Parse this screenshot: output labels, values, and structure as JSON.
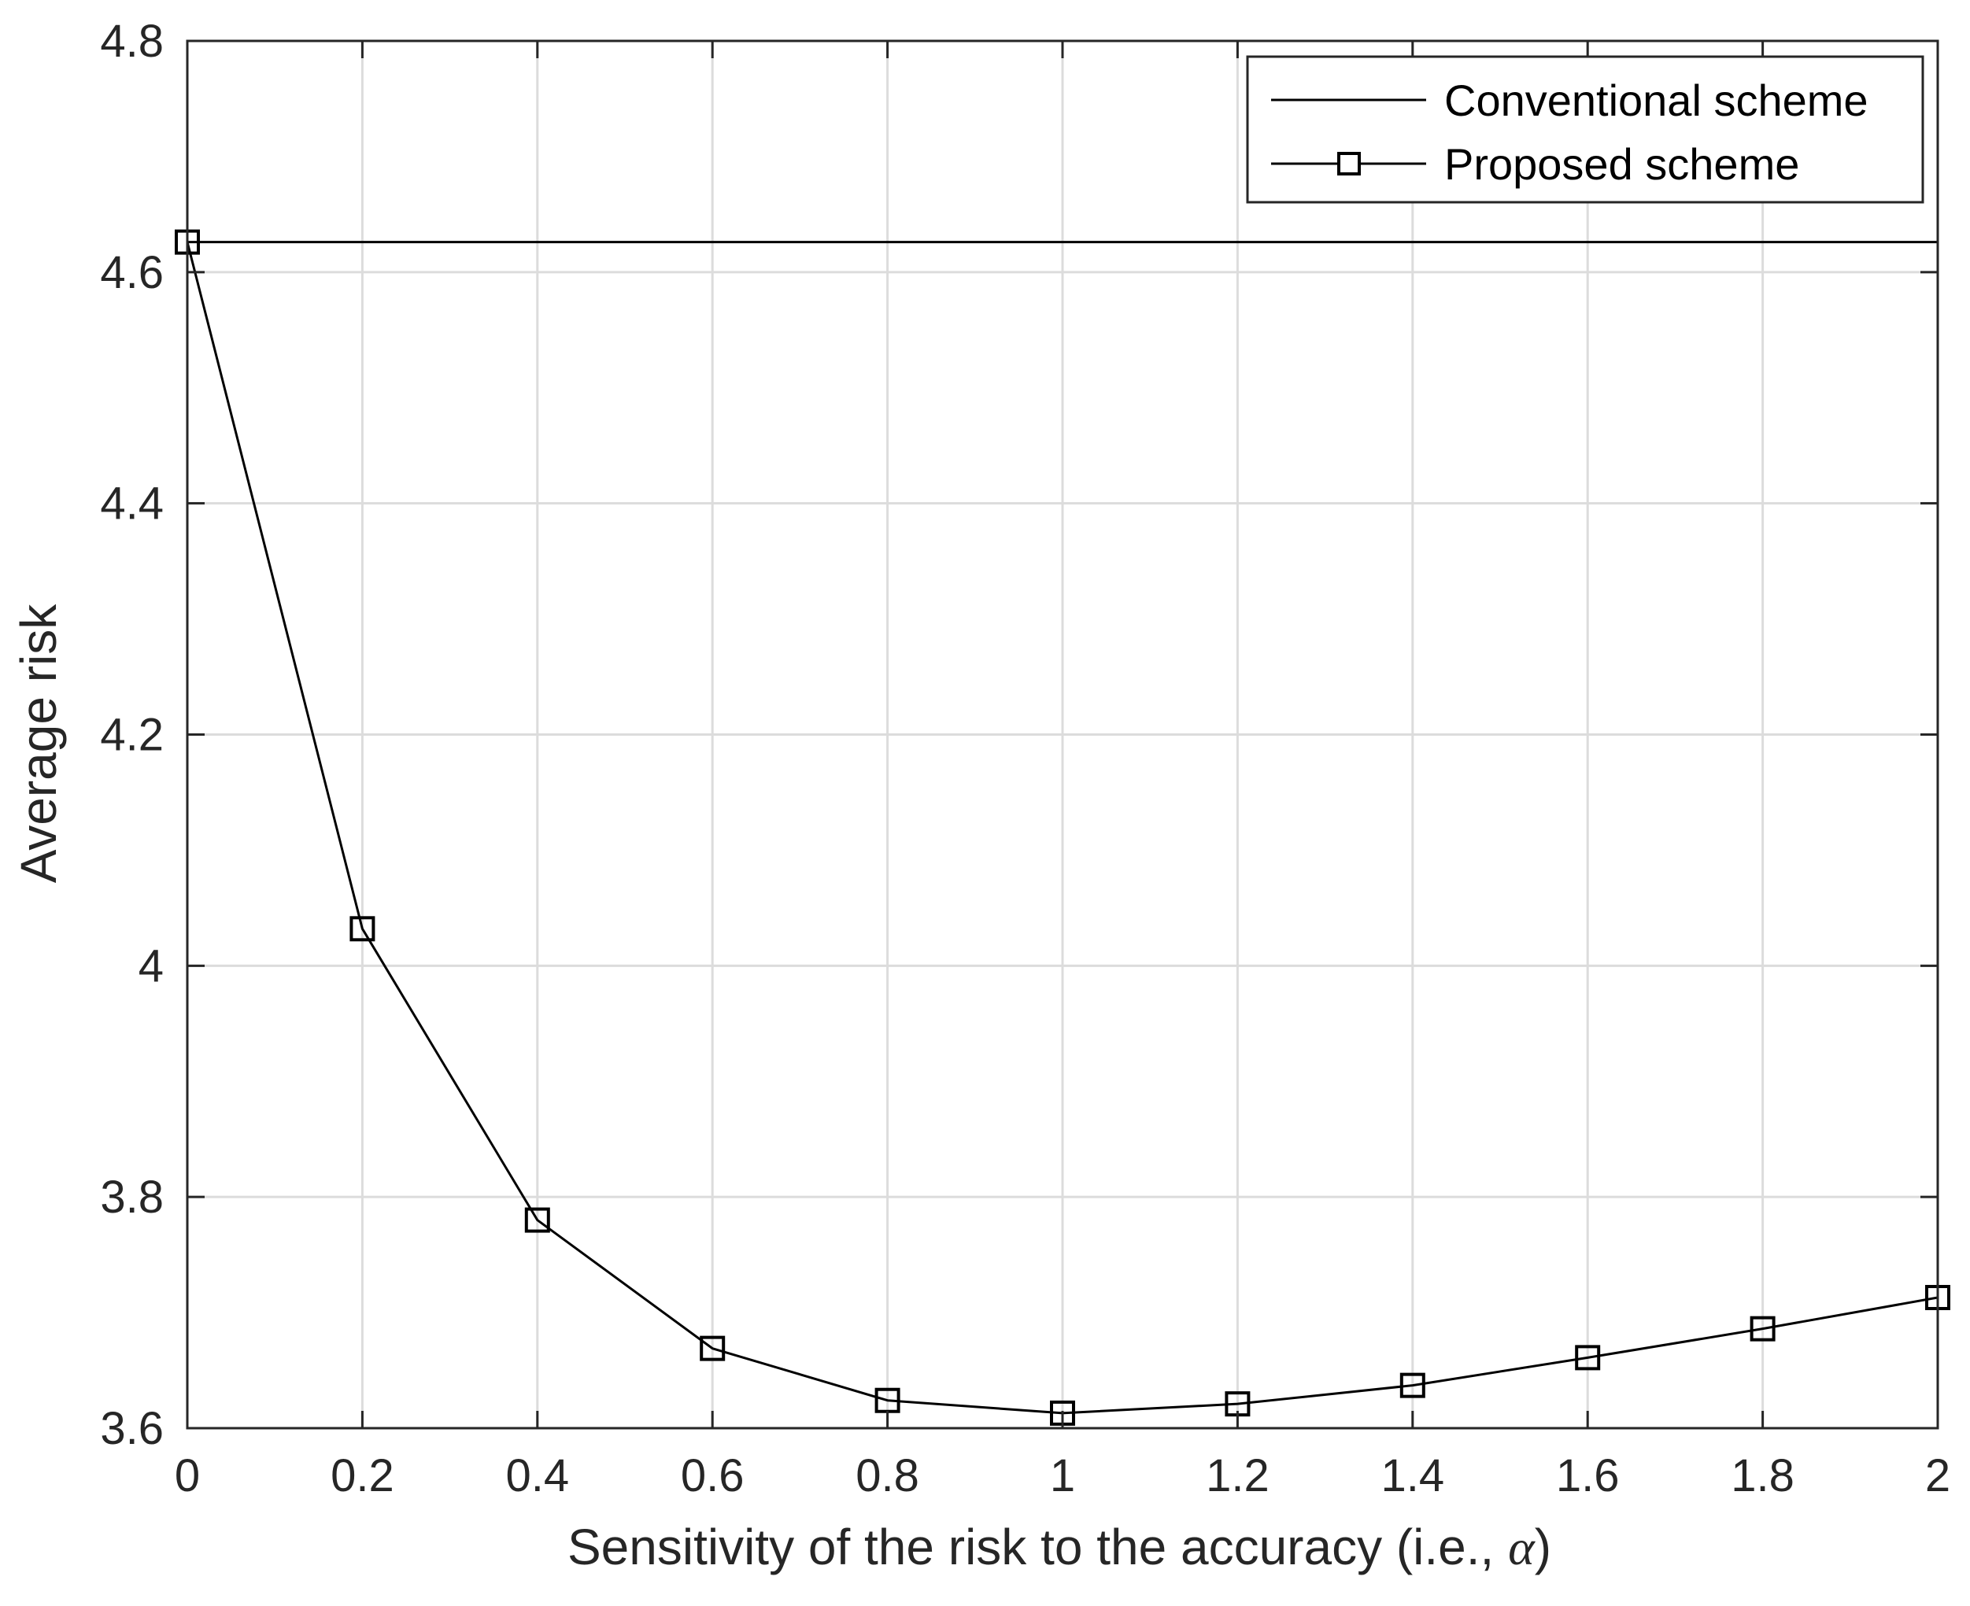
{
  "chart_data": {
    "type": "line",
    "title": "",
    "xlabel": "Sensitivity of the risk to the accuracy (i.e., α)",
    "xlabel_parts": {
      "prefix": "Sensitivity of the risk to the accuracy (i.e., ",
      "symbol": "α",
      "suffix": ")"
    },
    "ylabel": "Average risk",
    "xlim": [
      0,
      2
    ],
    "ylim": [
      3.6,
      4.8
    ],
    "xticks": [
      "0",
      "0.2",
      "0.4",
      "0.6",
      "0.8",
      "1",
      "1.2",
      "1.4",
      "1.6",
      "1.8",
      "2"
    ],
    "yticks": [
      "3.6",
      "3.8",
      "4",
      "4.2",
      "4.4",
      "4.6",
      "4.8"
    ],
    "grid": true,
    "legend_position": "top-right",
    "series": [
      {
        "name": "Conventional scheme",
        "marker": "none",
        "color": "#000000",
        "x": [
          0,
          2
        ],
        "y": [
          4.626,
          4.626
        ]
      },
      {
        "name": "Proposed scheme",
        "marker": "square",
        "color": "#000000",
        "x": [
          0,
          0.2,
          0.4,
          0.6,
          0.8,
          1.0,
          1.2,
          1.4,
          1.6,
          1.8,
          2.0
        ],
        "y": [
          4.626,
          4.032,
          3.78,
          3.669,
          3.624,
          3.613,
          3.621,
          3.637,
          3.661,
          3.686,
          3.713
        ]
      }
    ],
    "colors": {
      "grid": "#dcdcdc",
      "axis": "#262626",
      "line": "#000000"
    }
  }
}
